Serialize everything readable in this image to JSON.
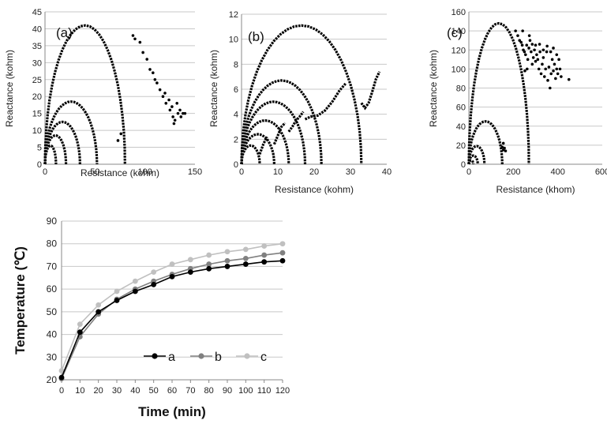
{
  "chart_data": [
    {
      "type": "scatter",
      "panel_label": "(a)",
      "xlabel": "Resistance (kohm)",
      "ylabel": "Reactance (kohm)",
      "xlim": [
        0,
        150
      ],
      "ylim": [
        0,
        45
      ],
      "xticks": [
        0,
        50,
        100,
        150
      ],
      "yticks": [
        0,
        5,
        10,
        15,
        20,
        25,
        30,
        35,
        40,
        45
      ],
      "grid": true,
      "color": "#000000",
      "series": [
        {
          "arcs": [
            [
              0,
              11,
              5.5
            ],
            [
              0,
              21,
              8.5
            ],
            [
              0,
              35,
              12.5
            ],
            [
              0,
              52,
              18.5
            ],
            [
              0,
              80,
              41
            ]
          ]
        },
        {
          "points": [
            [
              73,
              7
            ],
            [
              76,
              9
            ],
            [
              88,
              38
            ],
            [
              90,
              37
            ],
            [
              95,
              36
            ],
            [
              98,
              33
            ],
            [
              102,
              31
            ],
            [
              105,
              28
            ],
            [
              108,
              27
            ],
            [
              110,
              25
            ],
            [
              112,
              24
            ],
            [
              115,
              22
            ],
            [
              118,
              20
            ],
            [
              120,
              21
            ],
            [
              121,
              18
            ],
            [
              124,
              19
            ],
            [
              125,
              16
            ],
            [
              127,
              17
            ],
            [
              128,
              14
            ],
            [
              129,
              12
            ],
            [
              130,
              13
            ],
            [
              132,
              18
            ],
            [
              133,
              15
            ],
            [
              135,
              16
            ],
            [
              136,
              14
            ],
            [
              138,
              15
            ],
            [
              140,
              15
            ]
          ]
        }
      ]
    },
    {
      "type": "scatter",
      "panel_label": "(b)",
      "xlabel": "Resistance (kohm)",
      "ylabel": "Reactance (kohm)",
      "xlim": [
        0,
        40
      ],
      "ylim": [
        0,
        12
      ],
      "xticks": [
        0,
        10,
        20,
        30,
        40
      ],
      "yticks": [
        0,
        2,
        4,
        6,
        8,
        10,
        12
      ],
      "grid": true,
      "color": "#000000",
      "series": [
        {
          "arcs": [
            [
              0,
              5,
              1.5
            ],
            [
              0,
              9,
              2.4
            ],
            [
              0,
              13,
              3.5
            ],
            [
              0,
              17.5,
              5
            ],
            [
              0,
              22,
              6.7
            ],
            [
              0,
              33,
              11.1
            ]
          ]
        },
        {
          "polyline": [
            [
              5,
              0.8
            ],
            [
              6,
              1.6
            ],
            [
              7,
              2.2
            ]
          ]
        },
        {
          "polyline": [
            [
              9,
              1.6
            ],
            [
              10,
              2.3
            ],
            [
              11,
              3.0
            ],
            [
              12,
              3.3
            ]
          ]
        },
        {
          "polyline": [
            [
              13,
              2.6
            ],
            [
              14,
              3.0
            ],
            [
              15,
              3.5
            ],
            [
              16,
              3.8
            ],
            [
              17,
              4.2
            ]
          ]
        },
        {
          "polyline": [
            [
              17.5,
              3.6
            ],
            [
              19,
              3.8
            ],
            [
              21,
              3.9
            ],
            [
              23,
              4.3
            ],
            [
              25,
              5.0
            ],
            [
              27,
              5.9
            ],
            [
              28.8,
              6.5
            ]
          ]
        },
        {
          "polyline": [
            [
              33,
              4.9
            ],
            [
              34,
              4.5
            ],
            [
              35,
              4.9
            ],
            [
              36,
              5.8
            ],
            [
              37,
              6.8
            ],
            [
              38,
              7.4
            ]
          ]
        }
      ]
    },
    {
      "type": "scatter",
      "panel_label": "(c)",
      "xlabel": "Resistance (khom)",
      "ylabel": "Reactance (kohm)",
      "xlim": [
        0,
        600
      ],
      "ylim": [
        0,
        160
      ],
      "xticks": [
        0,
        200,
        400,
        600
      ],
      "yticks": [
        0,
        20,
        40,
        60,
        80,
        100,
        120,
        140,
        160
      ],
      "grid": true,
      "color": "#000000",
      "series": [
        {
          "arcs": [
            [
              0,
              20,
              4
            ],
            [
              0,
              40,
              9
            ],
            [
              0,
              70,
              19
            ],
            [
              0,
              150,
              45
            ],
            [
              0,
              270,
              148
            ]
          ]
        },
        {
          "points": [
            [
              150,
              18
            ],
            [
              155,
              15
            ],
            [
              160,
              17
            ],
            [
              165,
              14
            ],
            [
              155,
              22
            ]
          ]
        },
        {
          "points": [
            [
              210,
              140
            ],
            [
              220,
              135
            ],
            [
              228,
              130
            ],
            [
              235,
              128
            ],
            [
              240,
              125
            ],
            [
              245,
              120
            ],
            [
              250,
              118
            ],
            [
              255,
              115
            ],
            [
              260,
              125
            ],
            [
              262,
              100
            ],
            [
              265,
              110
            ],
            [
              270,
              122
            ],
            [
              275,
              130
            ],
            [
              280,
              118
            ],
            [
              285,
              105
            ],
            [
              290,
              112
            ],
            [
              295,
              120
            ],
            [
              300,
              108
            ],
            [
              305,
              115
            ],
            [
              310,
              110
            ],
            [
              315,
              100
            ],
            [
              320,
              118
            ],
            [
              325,
              95
            ],
            [
              330,
              105
            ],
            [
              335,
              112
            ],
            [
              340,
              92
            ],
            [
              345,
              100
            ],
            [
              350,
              118
            ],
            [
              355,
              88
            ],
            [
              360,
              102
            ],
            [
              365,
              80
            ],
            [
              370,
              95
            ],
            [
              375,
              110
            ],
            [
              380,
              98
            ],
            [
              385,
              105
            ],
            [
              390,
              90
            ],
            [
              395,
              100
            ],
            [
              400,
              95
            ],
            [
              405,
              110
            ],
            [
              410,
              100
            ],
            [
              415,
              92
            ],
            [
              450,
              89
            ],
            [
              242,
              140
            ],
            [
              252,
              98
            ],
            [
              272,
              135
            ],
            [
              285,
              126
            ],
            [
              300,
              125
            ],
            [
              318,
              126
            ],
            [
              335,
              120
            ],
            [
              352,
              124
            ],
            [
              368,
              118
            ],
            [
              380,
              122
            ],
            [
              395,
              115
            ]
          ]
        }
      ]
    },
    {
      "type": "line",
      "xlabel": "Time (min)",
      "ylabel": "Temperature (℃)",
      "xlim": [
        0,
        120
      ],
      "ylim": [
        20,
        90
      ],
      "x": [
        0,
        10,
        20,
        30,
        40,
        50,
        60,
        70,
        80,
        90,
        100,
        110,
        120
      ],
      "yticks": [
        20,
        30,
        40,
        50,
        60,
        70,
        80,
        90
      ],
      "grid": true,
      "legend": "bottom-right",
      "series": [
        {
          "name": "a",
          "color": "#000000",
          "values": [
            21,
            41,
            50,
            55,
            59,
            62,
            65.5,
            67.5,
            69,
            70,
            71,
            72,
            72.5
          ]
        },
        {
          "name": "b",
          "color": "#808080",
          "values": [
            20.5,
            39,
            49,
            55.5,
            60,
            63.5,
            66.5,
            69,
            71,
            72.5,
            73.5,
            75,
            76
          ]
        },
        {
          "name": "c",
          "color": "#c0c0c0",
          "values": [
            24,
            44.5,
            53,
            59,
            63.5,
            67.5,
            71,
            73,
            75,
            76.5,
            77.5,
            79,
            80
          ]
        }
      ]
    }
  ]
}
